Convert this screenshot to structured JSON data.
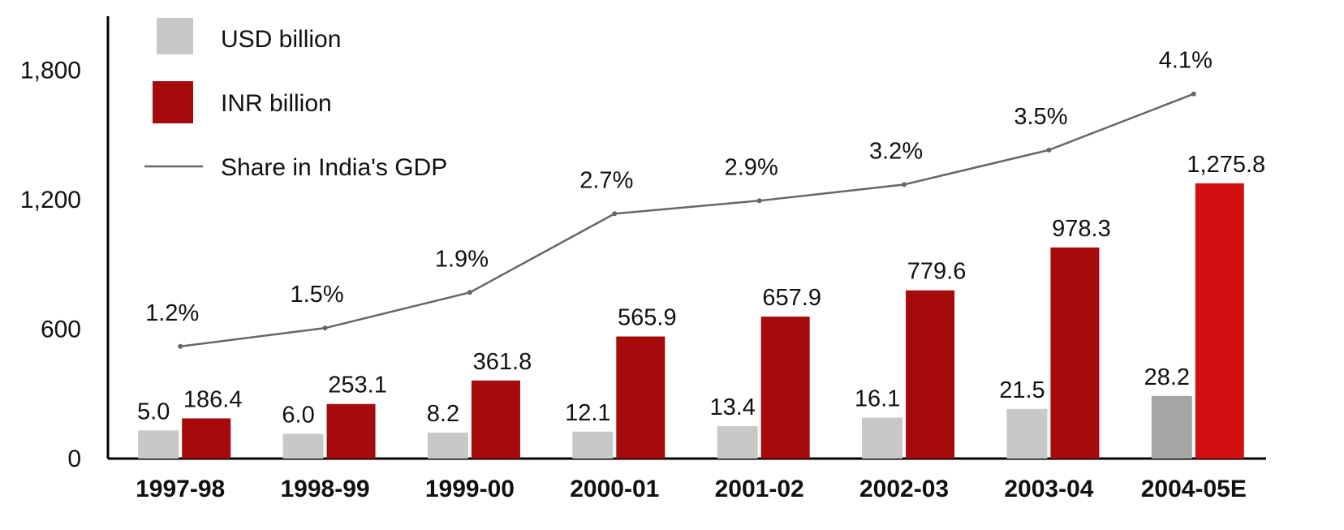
{
  "chart_data": {
    "type": "bar",
    "title": "",
    "xlabel": "",
    "ylabel": "",
    "ylim": [
      0,
      2050
    ],
    "yticks": [
      "0",
      "600",
      "1,200",
      "1,800"
    ],
    "ytick_values": [
      0,
      600,
      1200,
      1800
    ],
    "categories": [
      "1997-98",
      "1998-99",
      "1999-00",
      "2000-01",
      "2001-02",
      "2002-03",
      "2003-04",
      "2004-05E"
    ],
    "legend_position": "top-left",
    "grid": false,
    "series": [
      {
        "name": "USD billion",
        "type": "bar",
        "color": "#c8c8c8",
        "last_color": "#a5a5a5",
        "values": [
          5.0,
          6.0,
          8.2,
          12.1,
          13.4,
          16.1,
          21.5,
          28.2
        ],
        "labels": [
          "5.0",
          "6.0",
          "8.2",
          "12.1",
          "13.4",
          "16.1",
          "21.5",
          "28.2"
        ],
        "plot_heights": [
          130,
          115,
          120,
          125,
          150,
          190,
          230,
          290
        ]
      },
      {
        "name": "INR billion",
        "type": "bar",
        "color": "#a50b0b",
        "last_color": "#d40f10",
        "values": [
          186.4,
          253.1,
          361.8,
          565.9,
          657.9,
          779.6,
          978.3,
          1275.8
        ],
        "labels": [
          "186.4",
          "253.1",
          "361.8",
          "565.9",
          "657.9",
          "779.6",
          "978.3",
          "1,275.8"
        ]
      },
      {
        "name": "Share in India's GDP",
        "type": "line",
        "color": "#666666",
        "values_percent": [
          1.2,
          1.5,
          1.9,
          2.7,
          2.9,
          3.2,
          3.5,
          4.1
        ],
        "labels": [
          "1.2%",
          "1.5%",
          "1.9%",
          "2.7%",
          "2.9%",
          "3.2%",
          "3.5%",
          "4.1%"
        ],
        "plot_values": [
          520,
          605,
          770,
          1135,
          1195,
          1270,
          1430,
          1690
        ]
      }
    ]
  }
}
